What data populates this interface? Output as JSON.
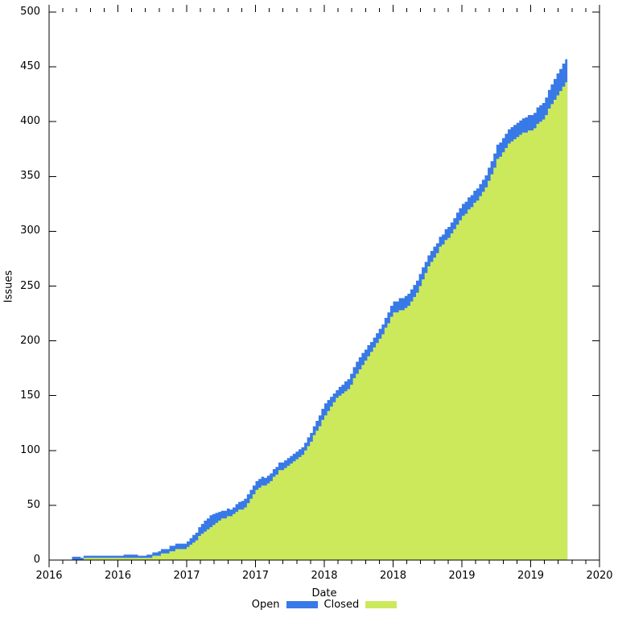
{
  "chart": {
    "ylabel": "Issues",
    "xlabel": "Date",
    "colors": {
      "open": "#3879e8",
      "closed": "#cce95c",
      "axis": "#000000",
      "background": "#ffffff"
    },
    "legend": [
      {
        "label": "Open",
        "color": "#3879e8"
      },
      {
        "label": "Closed",
        "color": "#cce95c"
      }
    ],
    "y_tick_values": [
      0,
      50,
      100,
      150,
      200,
      250,
      300,
      350,
      400,
      450,
      500
    ],
    "x_tick_labels": [
      "2016",
      "2016",
      "2017",
      "2017",
      "2018",
      "2018",
      "2019",
      "2019",
      "2020"
    ]
  },
  "chart_data": {
    "type": "area",
    "stacked": true,
    "title": "",
    "xlabel": "Date",
    "ylabel": "Issues",
    "legend_position": "bottom-center",
    "grid": false,
    "ylim": [
      0,
      500
    ],
    "x_range": [
      "2016-01",
      "2020-01"
    ],
    "x_tick_interval": "6 months, year label only",
    "x": [
      "2016-03",
      "2016-04",
      "2016-05",
      "2016-06",
      "2016-07",
      "2016-08",
      "2016-09",
      "2016-10",
      "2016-11",
      "2016-12",
      "2017-01",
      "2017-02",
      "2017-03",
      "2017-04",
      "2017-05",
      "2017-06",
      "2017-07",
      "2017-08",
      "2017-09",
      "2017-10",
      "2017-11",
      "2017-12",
      "2018-01",
      "2018-02",
      "2018-03",
      "2018-04",
      "2018-05",
      "2018-06",
      "2018-07",
      "2018-08",
      "2018-09",
      "2018-10",
      "2018-11",
      "2018-12",
      "2019-01",
      "2019-02",
      "2019-03",
      "2019-04",
      "2019-05",
      "2019-06",
      "2019-07",
      "2019-08",
      "2019-09",
      "2019-10",
      "2019-10"
    ],
    "t_months_since_2016_01": [
      2,
      3,
      4,
      5,
      6,
      7,
      8,
      9,
      10,
      11,
      12,
      13,
      14,
      15,
      16,
      17,
      18,
      19,
      20,
      21,
      22,
      23,
      24,
      25,
      26,
      27,
      28,
      29,
      30,
      31,
      32,
      33,
      34,
      35,
      36,
      37,
      38,
      39,
      40,
      41,
      42,
      43,
      44,
      45,
      45.2
    ],
    "series": [
      {
        "name": "Closed",
        "color": "#cce95c",
        "values": [
          0,
          1,
          1,
          1,
          1,
          1,
          2,
          3,
          6,
          9,
          11,
          21,
          29,
          37,
          42,
          48,
          64,
          70,
          81,
          87,
          96,
          113,
          132,
          148,
          156,
          174,
          189,
          206,
          226,
          229,
          244,
          267,
          285,
          297,
          314,
          325,
          340,
          365,
          380,
          388,
          392,
          402,
          420,
          435,
          440
        ]
      },
      {
        "name": "Open",
        "color": "#3879e8",
        "values": [
          3,
          2,
          2,
          2,
          2,
          3,
          2,
          3,
          4,
          5,
          5,
          8,
          11,
          7,
          6,
          8,
          8,
          7,
          7,
          7,
          7,
          8,
          11,
          7,
          9,
          11,
          9,
          9,
          10,
          11,
          11,
          10,
          9,
          10,
          11,
          11,
          11,
          13,
          13,
          13,
          14,
          15,
          19,
          21,
          21
        ]
      }
    ],
    "final_totals": {
      "closed": 440,
      "open": 21,
      "total": 461
    }
  }
}
